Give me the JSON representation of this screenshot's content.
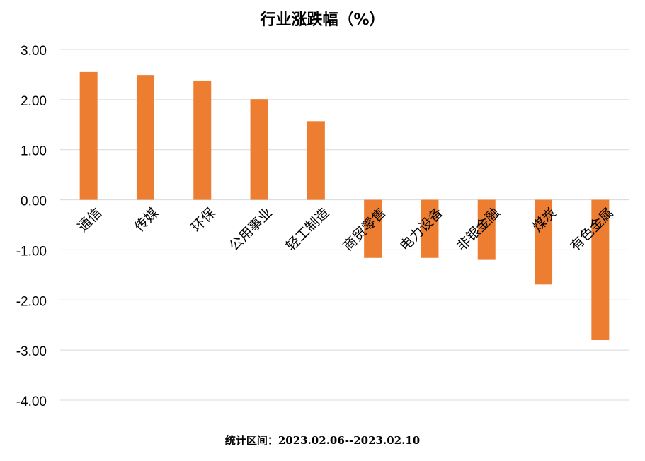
{
  "chart_data": {
    "type": "bar",
    "title": "行业涨跌幅（%）",
    "categories": [
      "通信",
      "传媒",
      "环保",
      "公用事业",
      "轻工制造",
      "商贸零售",
      "电力设备",
      "非银金融",
      "煤炭",
      "有色金属"
    ],
    "values": [
      2.55,
      2.49,
      2.38,
      2.01,
      1.57,
      -1.16,
      -1.16,
      -1.2,
      -1.69,
      -2.8
    ],
    "ylim": [
      -4,
      3
    ],
    "yticks": [
      "3.00",
      "2.00",
      "1.00",
      "0.00",
      "-1.00",
      "-2.00",
      "-3.00",
      "-4.00"
    ],
    "ytick_values": [
      3,
      2,
      1,
      0,
      -1,
      -2,
      -3,
      -4
    ],
    "xlabel": "",
    "ylabel": "",
    "grid": true,
    "legend": "none",
    "bar_color": "#ED7D31",
    "grid_color": "#D9D9D9"
  },
  "footnote": "统计区间：2023.02.06--2023.02.10"
}
